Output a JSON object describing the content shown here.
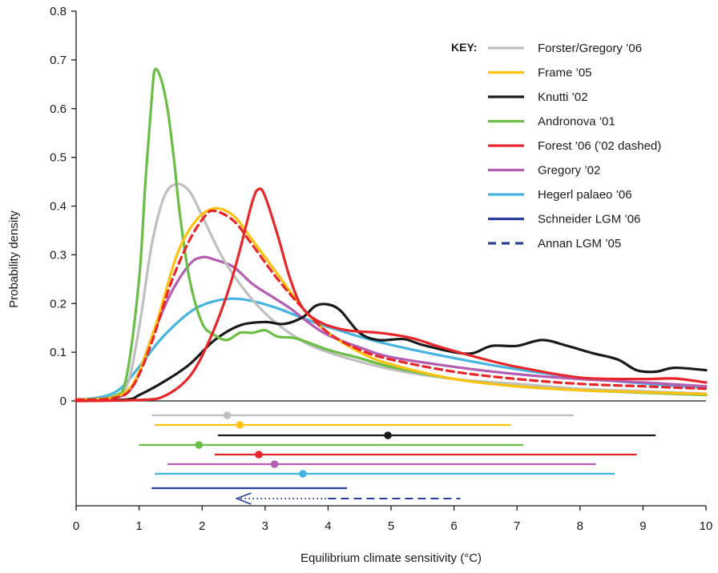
{
  "chart_data": {
    "type": "line",
    "title": "",
    "xlabel": "Equilibrium climate sensitivity (°C)",
    "ylabel": "Probability density",
    "xlim": [
      0,
      10
    ],
    "ylim": [
      0,
      0.8
    ],
    "x_ticks": [
      "0",
      "1",
      "2",
      "3",
      "4",
      "5",
      "6",
      "7",
      "8",
      "9",
      "10"
    ],
    "y_ticks": [
      "0",
      "0.1",
      "0.2",
      "0.3",
      "0.4",
      "0.5",
      "0.6",
      "0.7",
      "0.8"
    ],
    "grid": false,
    "legend_title": "KEY:",
    "legend_position": "top-right",
    "series": [
      {
        "name": "Forster/Gregory ’06",
        "color": "#bfbfbf",
        "dash": false,
        "points": [
          [
            0,
            0.003
          ],
          [
            0.5,
            0.006
          ],
          [
            0.8,
            0.03
          ],
          [
            1.0,
            0.15
          ],
          [
            1.2,
            0.32
          ],
          [
            1.4,
            0.42
          ],
          [
            1.6,
            0.445
          ],
          [
            1.8,
            0.43
          ],
          [
            2.0,
            0.38
          ],
          [
            2.3,
            0.3
          ],
          [
            2.6,
            0.24
          ],
          [
            3.0,
            0.18
          ],
          [
            3.5,
            0.13
          ],
          [
            4.0,
            0.1
          ],
          [
            5.0,
            0.065
          ],
          [
            6.0,
            0.045
          ],
          [
            7.0,
            0.035
          ],
          [
            8.0,
            0.025
          ],
          [
            9.0,
            0.02
          ],
          [
            10.0,
            0.015
          ]
        ],
        "range_bar": {
          "low": 1.2,
          "best": 2.4,
          "high": 7.9
        }
      },
      {
        "name": "Frame ’05",
        "color": "#ffc20e",
        "dash": false,
        "points": [
          [
            0,
            0.003
          ],
          [
            0.5,
            0.005
          ],
          [
            0.8,
            0.02
          ],
          [
            1.0,
            0.06
          ],
          [
            1.3,
            0.17
          ],
          [
            1.6,
            0.3
          ],
          [
            1.9,
            0.37
          ],
          [
            2.2,
            0.395
          ],
          [
            2.5,
            0.38
          ],
          [
            2.8,
            0.33
          ],
          [
            3.2,
            0.26
          ],
          [
            3.6,
            0.19
          ],
          [
            4.0,
            0.14
          ],
          [
            4.5,
            0.1
          ],
          [
            5.0,
            0.075
          ],
          [
            6.0,
            0.045
          ],
          [
            7.0,
            0.03
          ],
          [
            8.0,
            0.022
          ],
          [
            9.0,
            0.018
          ],
          [
            10.0,
            0.014
          ]
        ],
        "range_bar": {
          "low": 1.25,
          "best": 2.6,
          "high": 6.9
        }
      },
      {
        "name": "Knutti ’02",
        "color": "#1a1a1a",
        "dash": false,
        "points": [
          [
            0,
            0.0
          ],
          [
            0.8,
            0.003
          ],
          [
            1.0,
            0.012
          ],
          [
            1.4,
            0.04
          ],
          [
            1.8,
            0.075
          ],
          [
            2.2,
            0.125
          ],
          [
            2.6,
            0.155
          ],
          [
            3.0,
            0.162
          ],
          [
            3.3,
            0.158
          ],
          [
            3.6,
            0.172
          ],
          [
            3.8,
            0.195
          ],
          [
            4.0,
            0.198
          ],
          [
            4.2,
            0.185
          ],
          [
            4.5,
            0.14
          ],
          [
            4.8,
            0.125
          ],
          [
            5.2,
            0.127
          ],
          [
            5.5,
            0.115
          ],
          [
            6.0,
            0.1
          ],
          [
            6.3,
            0.098
          ],
          [
            6.6,
            0.113
          ],
          [
            7.0,
            0.113
          ],
          [
            7.4,
            0.125
          ],
          [
            7.8,
            0.113
          ],
          [
            8.2,
            0.098
          ],
          [
            8.6,
            0.085
          ],
          [
            8.9,
            0.063
          ],
          [
            9.2,
            0.06
          ],
          [
            9.5,
            0.068
          ],
          [
            10.0,
            0.063
          ]
        ],
        "range_bar": {
          "low": 2.25,
          "best": 4.95,
          "high": 9.2
        }
      },
      {
        "name": "Andronova ’01",
        "color": "#6abd45",
        "dash": false,
        "points": [
          [
            0,
            0.002
          ],
          [
            0.6,
            0.01
          ],
          [
            0.8,
            0.05
          ],
          [
            1.0,
            0.25
          ],
          [
            1.1,
            0.45
          ],
          [
            1.2,
            0.62
          ],
          [
            1.25,
            0.68
          ],
          [
            1.35,
            0.66
          ],
          [
            1.45,
            0.6
          ],
          [
            1.55,
            0.5
          ],
          [
            1.65,
            0.38
          ],
          [
            1.8,
            0.25
          ],
          [
            2.0,
            0.16
          ],
          [
            2.2,
            0.135
          ],
          [
            2.4,
            0.125
          ],
          [
            2.6,
            0.14
          ],
          [
            2.8,
            0.14
          ],
          [
            3.0,
            0.145
          ],
          [
            3.2,
            0.132
          ],
          [
            3.5,
            0.128
          ],
          [
            4.0,
            0.105
          ],
          [
            4.5,
            0.088
          ],
          [
            5.0,
            0.07
          ],
          [
            6.0,
            0.045
          ],
          [
            7.0,
            0.03
          ],
          [
            8.0,
            0.022
          ],
          [
            9.0,
            0.017
          ],
          [
            10.0,
            0.012
          ]
        ],
        "range_bar": {
          "low": 1.0,
          "best": 1.95,
          "high": 7.1
        }
      },
      {
        "name": "Forest ’06 (’02 dashed)",
        "color": "#e8262a",
        "dash": false,
        "points": [
          [
            0,
            0.0
          ],
          [
            1.0,
            0.002
          ],
          [
            1.4,
            0.01
          ],
          [
            1.8,
            0.05
          ],
          [
            2.1,
            0.12
          ],
          [
            2.4,
            0.22
          ],
          [
            2.6,
            0.31
          ],
          [
            2.8,
            0.41
          ],
          [
            2.9,
            0.435
          ],
          [
            3.0,
            0.42
          ],
          [
            3.2,
            0.34
          ],
          [
            3.4,
            0.25
          ],
          [
            3.6,
            0.19
          ],
          [
            3.9,
            0.16
          ],
          [
            4.3,
            0.145
          ],
          [
            4.8,
            0.14
          ],
          [
            5.3,
            0.13
          ],
          [
            5.8,
            0.11
          ],
          [
            6.5,
            0.085
          ],
          [
            7.0,
            0.07
          ],
          [
            8.0,
            0.048
          ],
          [
            9.0,
            0.045
          ],
          [
            9.5,
            0.046
          ],
          [
            10.0,
            0.038
          ]
        ],
        "range_bar": {
          "low": 2.2,
          "best": 2.9,
          "high": 8.9
        }
      },
      {
        "name": "Forest ’02",
        "color": "#e8262a",
        "dash": true,
        "points": [
          [
            0,
            0.003
          ],
          [
            0.6,
            0.006
          ],
          [
            0.9,
            0.03
          ],
          [
            1.2,
            0.12
          ],
          [
            1.5,
            0.24
          ],
          [
            1.8,
            0.33
          ],
          [
            2.05,
            0.38
          ],
          [
            2.2,
            0.39
          ],
          [
            2.5,
            0.37
          ],
          [
            2.8,
            0.32
          ],
          [
            3.2,
            0.25
          ],
          [
            3.6,
            0.19
          ],
          [
            4.0,
            0.14
          ],
          [
            4.5,
            0.105
          ],
          [
            5.0,
            0.085
          ],
          [
            6.0,
            0.06
          ],
          [
            7.0,
            0.045
          ],
          [
            8.0,
            0.035
          ],
          [
            9.0,
            0.03
          ],
          [
            10.0,
            0.025
          ]
        ]
      },
      {
        "name": "Gregory ’02",
        "color": "#b45eb2",
        "dash": false,
        "points": [
          [
            0,
            0.002
          ],
          [
            0.6,
            0.006
          ],
          [
            0.9,
            0.03
          ],
          [
            1.2,
            0.13
          ],
          [
            1.5,
            0.22
          ],
          [
            1.8,
            0.28
          ],
          [
            2.0,
            0.295
          ],
          [
            2.2,
            0.29
          ],
          [
            2.5,
            0.275
          ],
          [
            2.8,
            0.24
          ],
          [
            3.1,
            0.215
          ],
          [
            3.4,
            0.19
          ],
          [
            3.7,
            0.16
          ],
          [
            4.0,
            0.135
          ],
          [
            4.5,
            0.11
          ],
          [
            5.0,
            0.09
          ],
          [
            6.0,
            0.07
          ],
          [
            7.0,
            0.055
          ],
          [
            8.0,
            0.045
          ],
          [
            9.0,
            0.038
          ],
          [
            10.0,
            0.03
          ]
        ],
        "range_bar": {
          "low": 1.45,
          "best": 3.15,
          "high": 8.25
        }
      },
      {
        "name": "Hegerl palaeo ’06",
        "color": "#45b4e0",
        "dash": false,
        "points": [
          [
            0,
            0.002
          ],
          [
            0.4,
            0.008
          ],
          [
            0.7,
            0.025
          ],
          [
            1.0,
            0.07
          ],
          [
            1.3,
            0.12
          ],
          [
            1.6,
            0.16
          ],
          [
            1.9,
            0.19
          ],
          [
            2.2,
            0.205
          ],
          [
            2.5,
            0.21
          ],
          [
            2.8,
            0.205
          ],
          [
            3.2,
            0.19
          ],
          [
            3.6,
            0.17
          ],
          [
            4.0,
            0.152
          ],
          [
            4.5,
            0.132
          ],
          [
            5.0,
            0.115
          ],
          [
            6.0,
            0.088
          ],
          [
            7.0,
            0.065
          ],
          [
            8.0,
            0.048
          ],
          [
            9.0,
            0.036
          ],
          [
            10.0,
            0.027
          ]
        ],
        "range_bar": {
          "low": 1.25,
          "best": 3.6,
          "high": 8.55
        }
      },
      {
        "name": "Schneider LGM ’06",
        "color": "#283f9a",
        "dash": false,
        "points": [],
        "range_bar": {
          "low": 1.2,
          "high": 4.3
        }
      },
      {
        "name": "Annan LGM ’05",
        "color": "#283f9a",
        "dash": true,
        "points": [],
        "range_bar": {
          "dotted_from": 2.55,
          "dotted_to": 4.0,
          "dashed_to": 6.1
        }
      }
    ]
  }
}
